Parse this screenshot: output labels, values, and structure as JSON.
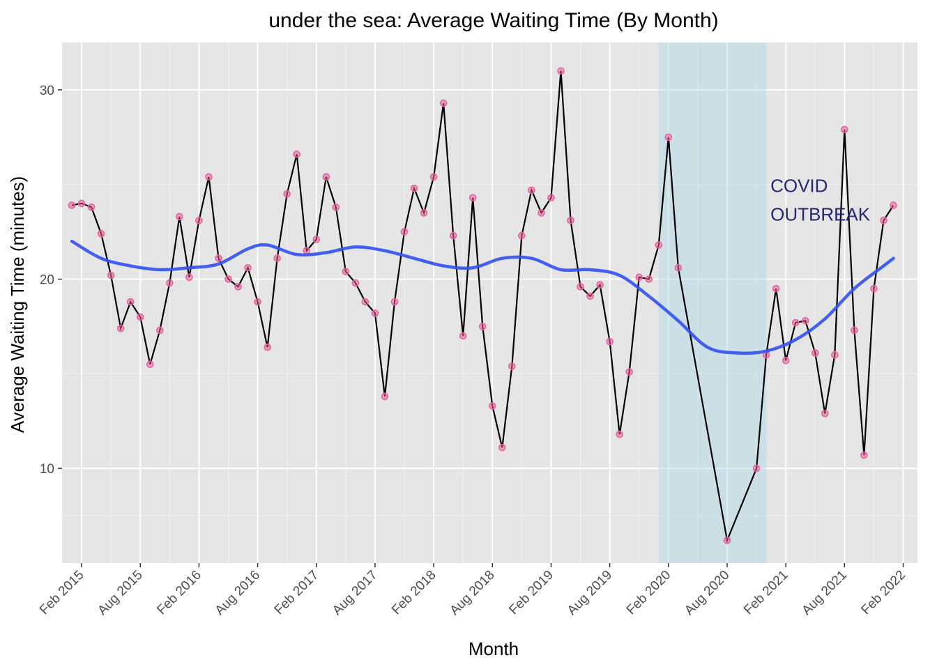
{
  "chart_data": {
    "type": "line",
    "title": "under the sea: Average Waiting Time (By Month)",
    "xlabel": "Month",
    "ylabel": "Average Waiting Time (minutes)",
    "x_ticks": [
      "Feb 2015",
      "Aug 2015",
      "Feb 2016",
      "Aug 2016",
      "Feb 2017",
      "Aug 2017",
      "Feb 2018",
      "Aug 2018",
      "Feb 2019",
      "Aug 2019",
      "Feb 2020",
      "Aug 2020",
      "Feb 2021",
      "Aug 2021",
      "Feb 2022"
    ],
    "y_ticks": [
      10,
      20,
      30
    ],
    "xlim": [
      "2014-12-01",
      "2022-03-15"
    ],
    "ylim": [
      5,
      32.5
    ],
    "grid": true,
    "series": [
      {
        "x": [
          "2015-01",
          "2015-02",
          "2015-03",
          "2015-04",
          "2015-05",
          "2015-06",
          "2015-07",
          "2015-08",
          "2015-09",
          "2015-10",
          "2015-11",
          "2015-12",
          "2016-01",
          "2016-02",
          "2016-03",
          "2016-04",
          "2016-05",
          "2016-06",
          "2016-07",
          "2016-08",
          "2016-09",
          "2016-10",
          "2016-11",
          "2016-12",
          "2017-01",
          "2017-02",
          "2017-03",
          "2017-04",
          "2017-05",
          "2017-06",
          "2017-07",
          "2017-08",
          "2017-09",
          "2017-10",
          "2017-11",
          "2017-12",
          "2018-01",
          "2018-02",
          "2018-03",
          "2018-04",
          "2018-05",
          "2018-06",
          "2018-07",
          "2018-08",
          "2018-09",
          "2018-10",
          "2018-11",
          "2018-12",
          "2019-01",
          "2019-02",
          "2019-03",
          "2019-04",
          "2019-05",
          "2019-06",
          "2019-07",
          "2019-08",
          "2019-09",
          "2019-10",
          "2019-11",
          "2019-12",
          "2020-01",
          "2020-02",
          "2020-03",
          "2020-08",
          "2020-11",
          "2020-12",
          "2021-01",
          "2021-02",
          "2021-03",
          "2021-04",
          "2021-05",
          "2021-06",
          "2021-07",
          "2021-08",
          "2021-09",
          "2021-10",
          "2021-11",
          "2021-12",
          "2022-01"
        ],
        "values": [
          23.9,
          24.0,
          23.8,
          22.4,
          20.2,
          17.4,
          18.8,
          18.0,
          15.5,
          17.3,
          19.8,
          23.3,
          20.1,
          23.1,
          25.4,
          21.1,
          20.0,
          19.6,
          20.6,
          18.8,
          16.4,
          21.1,
          24.5,
          26.6,
          21.5,
          22.1,
          25.4,
          23.8,
          20.4,
          19.8,
          18.8,
          18.2,
          13.8,
          18.8,
          22.5,
          24.8,
          23.5,
          25.4,
          29.3,
          22.3,
          17.0,
          24.3,
          17.5,
          13.3,
          11.1,
          15.4,
          22.3,
          24.7,
          23.5,
          24.3,
          31.0,
          23.1,
          19.6,
          19.1,
          19.7,
          16.7,
          11.8,
          15.1,
          20.1,
          20.0,
          21.8,
          27.5,
          20.6,
          6.2,
          10.0,
          16.0,
          19.5,
          15.7,
          17.7,
          17.8,
          16.1,
          12.9,
          16.0,
          27.9,
          17.3,
          10.7,
          19.5,
          23.1,
          23.9
        ],
        "line_color": "#000000",
        "point_color": "#e8629d"
      },
      {
        "type": "smooth",
        "x": [
          "2015-01",
          "2015-04",
          "2015-07",
          "2015-10",
          "2016-01",
          "2016-04",
          "2016-07",
          "2016-09",
          "2016-12",
          "2017-03",
          "2017-06",
          "2017-09",
          "2017-12",
          "2018-03",
          "2018-06",
          "2018-09",
          "2018-12",
          "2019-03",
          "2019-06",
          "2019-09",
          "2019-12",
          "2020-03",
          "2020-06",
          "2020-09",
          "2020-12",
          "2021-03",
          "2021-06",
          "2021-09",
          "2021-12",
          "2022-01"
        ],
        "values": [
          22.0,
          21.1,
          20.7,
          20.5,
          20.6,
          20.8,
          21.6,
          21.8,
          21.3,
          21.4,
          21.7,
          21.5,
          21.1,
          20.7,
          20.6,
          21.1,
          21.1,
          20.5,
          20.5,
          20.2,
          19.1,
          17.8,
          16.4,
          16.1,
          16.2,
          16.8,
          17.9,
          19.5,
          20.7,
          21.1
        ],
        "line_color": "#3454f0"
      }
    ],
    "shaded_region": {
      "from": "2020-01",
      "to": "2020-12",
      "color": "#add8e6"
    },
    "annotation": {
      "lines": [
        "COVID",
        "OUTBREAK"
      ],
      "x": "2020-12",
      "y": 24.6,
      "color": "#262673"
    }
  }
}
